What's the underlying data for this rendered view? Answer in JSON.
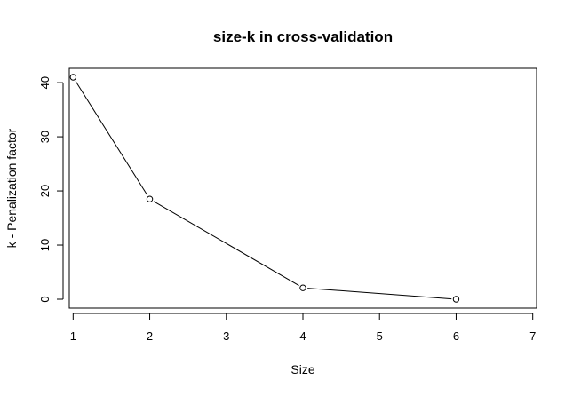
{
  "chart_data": {
    "type": "line",
    "title": "size-k in cross-validation",
    "xlabel": "Size",
    "ylabel": "k - Penalization factor",
    "x": [
      1,
      2,
      4,
      6
    ],
    "y": [
      41,
      18.5,
      2.1,
      0
    ],
    "xlim": [
      0.95,
      7.05
    ],
    "ylim": [
      -1.64,
      42.64
    ],
    "xticks": [
      1,
      2,
      3,
      4,
      5,
      6,
      7
    ],
    "yticks": [
      0,
      10,
      20,
      30,
      40
    ],
    "grid": false,
    "markers": "open-circle",
    "line_color": "#000000"
  }
}
